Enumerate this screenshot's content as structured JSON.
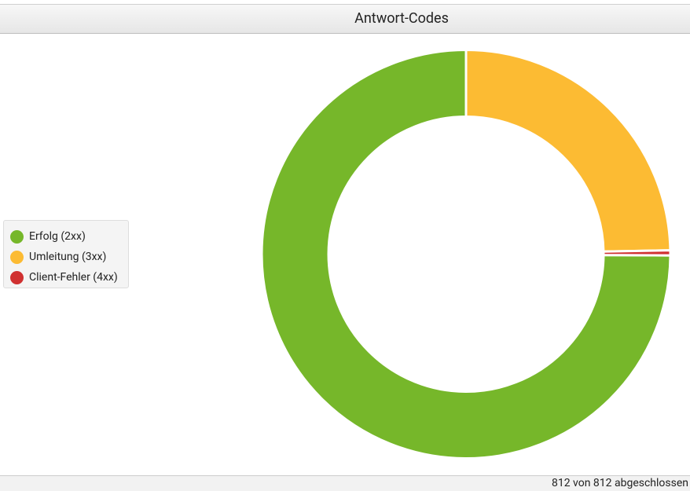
{
  "chart_data": {
    "type": "pie",
    "title": "Antwort-Codes",
    "categories": [
      "Erfolg (2xx)",
      "Umleitung (3xx)",
      "Client-Fehler (4xx)"
    ],
    "values": [
      74.9,
      24.7,
      0.4
    ],
    "colors": [
      "#76b72a",
      "#fcbb33",
      "#d03131"
    ],
    "donut": true
  },
  "status": "812 von 812 abgeschlossen"
}
